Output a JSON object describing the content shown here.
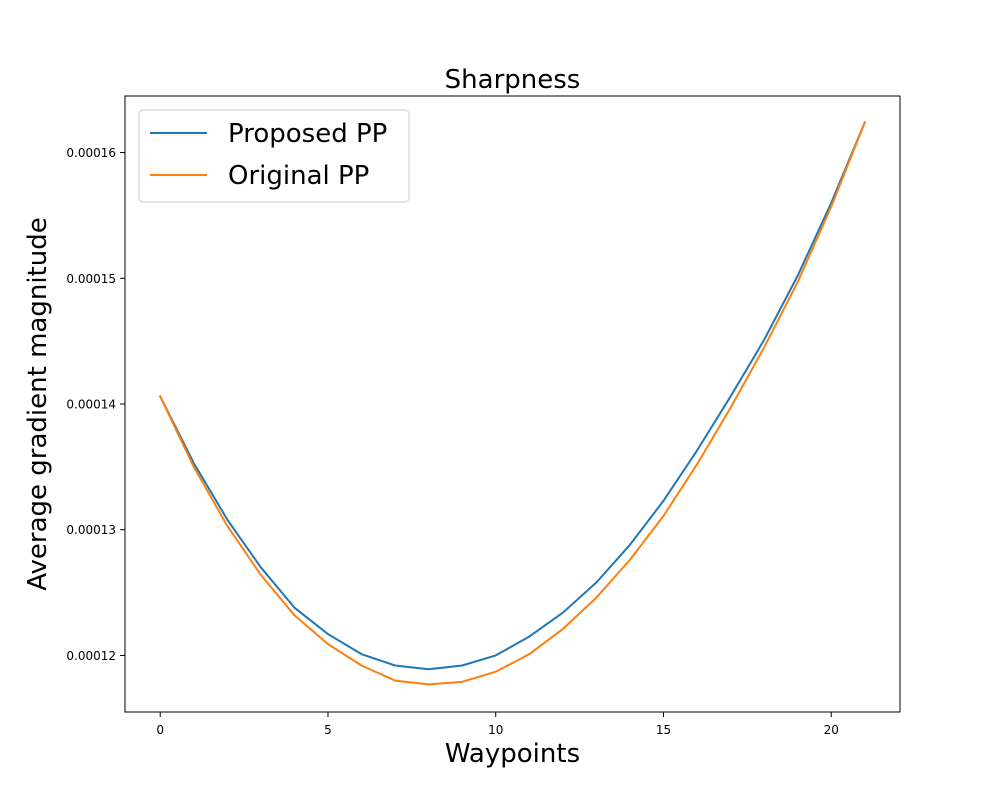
{
  "chart_data": {
    "type": "line",
    "title": "Sharpness",
    "xlabel": "Waypoints",
    "ylabel": "Average gradient magnitude",
    "xlim": [
      -1.05,
      22.05
    ],
    "ylim": [
      0.0001155,
      0.0001645
    ],
    "xticks": [
      0,
      5,
      10,
      15,
      20
    ],
    "xtick_labels": [
      "0",
      "5",
      "10",
      "15",
      "20"
    ],
    "yticks": [
      0.00012,
      0.00013,
      0.00014,
      0.00015,
      0.00016
    ],
    "ytick_labels": [
      "0.00012",
      "0.00013",
      "0.00014",
      "0.00015",
      "0.00016"
    ],
    "grid": false,
    "legend_position": "top-left",
    "x": [
      0,
      1,
      2,
      3,
      4,
      5,
      6,
      7,
      8,
      9,
      10,
      11,
      12,
      13,
      14,
      15,
      16,
      17,
      18,
      19,
      20,
      21
    ],
    "series": [
      {
        "name": "Proposed PP",
        "color": "#1f77b4",
        "values": [
          0.0001406,
          0.0001353,
          0.0001308,
          0.000127,
          0.0001238,
          0.0001217,
          0.0001201,
          0.0001192,
          0.0001189,
          0.0001192,
          0.00012,
          0.0001215,
          0.0001234,
          0.0001258,
          0.0001288,
          0.0001323,
          0.0001363,
          0.0001406,
          0.0001451,
          0.0001502,
          0.000156,
          0.0001624
        ]
      },
      {
        "name": "Original PP",
        "color": "#ff7f0e",
        "values": [
          0.0001406,
          0.000135,
          0.0001303,
          0.0001264,
          0.0001232,
          0.0001209,
          0.0001192,
          0.000118,
          0.0001177,
          0.0001179,
          0.0001187,
          0.0001201,
          0.0001221,
          0.0001246,
          0.0001276,
          0.0001311,
          0.0001352,
          0.0001397,
          0.0001445,
          0.0001497,
          0.0001557,
          0.0001624
        ]
      }
    ]
  }
}
